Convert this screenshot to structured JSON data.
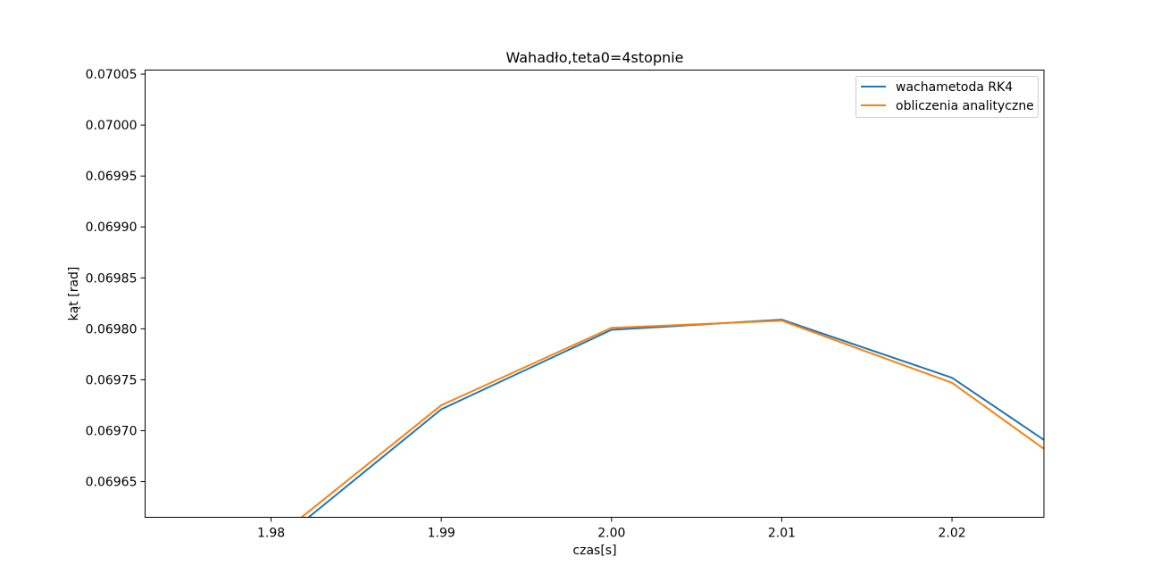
{
  "chart_data": {
    "type": "line",
    "title": "Wahadło,teta0=4stopnie",
    "xlabel": "czas[s]",
    "ylabel": "kąt [rad]",
    "xlim": [
      1.9726,
      2.0254
    ],
    "ylim": [
      0.069615,
      0.070054
    ],
    "xticks": [
      1.98,
      1.99,
      2.0,
      2.01,
      2.02
    ],
    "xtick_labels": [
      "1.98",
      "1.99",
      "2.00",
      "2.01",
      "2.02"
    ],
    "yticks": [
      0.06965,
      0.0697,
      0.06975,
      0.0698,
      0.06985,
      0.0699,
      0.06995,
      0.07,
      0.07005
    ],
    "ytick_labels": [
      "0.06965",
      "0.06970",
      "0.06975",
      "0.06980",
      "0.06985",
      "0.06990",
      "0.06995",
      "0.07000",
      "0.07005"
    ],
    "grid": false,
    "legend_position": "top-right",
    "series": [
      {
        "name": "wachametoda RK4",
        "color": "#1f77b4",
        "x": [
          1.98,
          1.99,
          2.0,
          2.01,
          2.02,
          2.03
        ],
        "y": [
          0.069585,
          0.069721,
          0.069799,
          0.069809,
          0.069752,
          0.069639
        ]
      },
      {
        "name": "obliczenia analityczne",
        "color": "#ff7f0e",
        "x": [
          1.98,
          1.99,
          2.0,
          2.01,
          2.02,
          2.03
        ],
        "y": [
          0.069591,
          0.069725,
          0.069801,
          0.069808,
          0.069747,
          0.069627
        ]
      }
    ]
  }
}
